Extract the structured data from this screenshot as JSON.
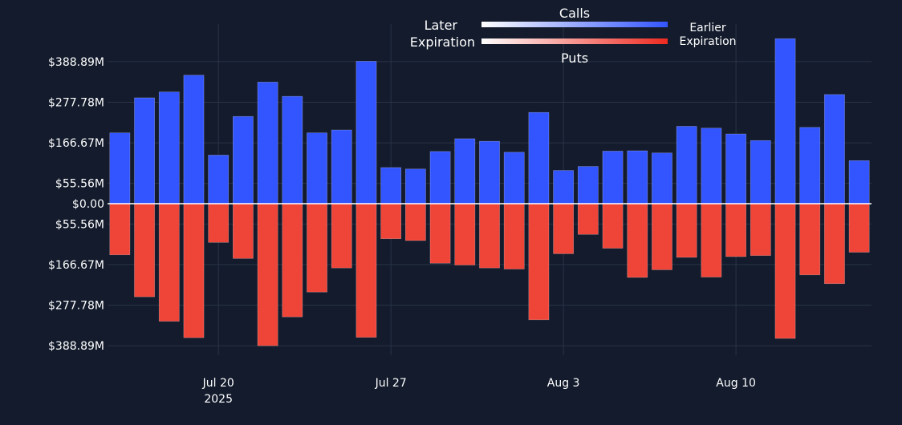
{
  "chart_data": {
    "type": "bar",
    "title": "",
    "xlabel": "",
    "ylabel": "",
    "categories": [
      "Jul 16",
      "Jul 17",
      "Jul 18",
      "Jul 19",
      "Jul 20",
      "Jul 21",
      "Jul 22",
      "Jul 23",
      "Jul 24",
      "Jul 25",
      "Jul 26",
      "Jul 27",
      "Jul 28",
      "Jul 29",
      "Jul 30",
      "Jul 31",
      "Aug 1",
      "Aug 2",
      "Aug 3",
      "Aug 4",
      "Aug 5",
      "Aug 6",
      "Aug 7",
      "Aug 8",
      "Aug 9",
      "Aug 10",
      "Aug 11",
      "Aug 12",
      "Aug 13",
      "Aug 14",
      "Aug 15"
    ],
    "series": [
      {
        "name": "Calls",
        "color": "#3355ff",
        "values": [
          194,
          290,
          306,
          352,
          133,
          239,
          333,
          294,
          194,
          202,
          390,
          99,
          95,
          143,
          178,
          171,
          141,
          250,
          91,
          102,
          144,
          145,
          139,
          212,
          207,
          191,
          173,
          452,
          209,
          299,
          118
        ]
      },
      {
        "name": "Puts",
        "color": "#ef4438",
        "values": [
          -140,
          -255,
          -322,
          -367,
          -106,
          -150,
          -389,
          -310,
          -242,
          -176,
          -366,
          -96,
          -101,
          -163,
          -168,
          -176,
          -179,
          -318,
          -137,
          -84,
          -122,
          -202,
          -181,
          -147,
          -201,
          -145,
          -142,
          -369,
          -195,
          -219,
          -133
        ]
      }
    ],
    "ylim": [
      -415,
      470
    ],
    "yticks": [
      -388.89,
      -277.78,
      -166.67,
      -55.56,
      0,
      55.56,
      166.67,
      277.78,
      388.89
    ],
    "ytick_labels": [
      "$388.89M",
      "$277.78M",
      "$166.67M",
      "$55.56M",
      "$0.00",
      "$55.56M",
      "$166.67M",
      "$277.78M",
      "$388.89M"
    ],
    "xtick_labels": [
      {
        "index": 4,
        "label": "Jul 20",
        "sub": "2025"
      },
      {
        "index": 11,
        "label": "Jul 27",
        "sub": ""
      },
      {
        "index": 18,
        "label": "Aug 3",
        "sub": ""
      },
      {
        "index": 25,
        "label": "Aug 10",
        "sub": ""
      }
    ],
    "grid": true,
    "legend": {
      "placement": "top-center",
      "calls_label": "Calls",
      "puts_label": "Puts",
      "left_label_1": "Later",
      "left_label_2": "Expiration",
      "right_label_1": "Earlier",
      "right_label_2": "Expiration",
      "calls_gradient": [
        "#ffffff",
        "#3355ff"
      ],
      "puts_gradient": [
        "#ffffff",
        "#ee2a20"
      ]
    }
  }
}
